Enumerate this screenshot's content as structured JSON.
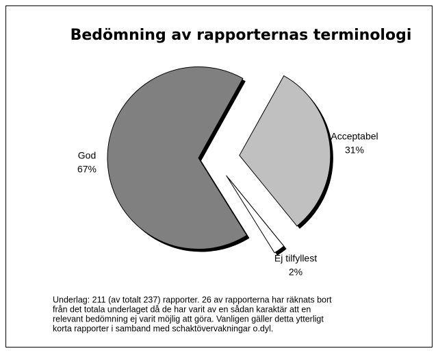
{
  "chart_data": {
    "type": "pie",
    "title": "Bedömning av rapporternas terminologi",
    "categories": [
      "God",
      "Acceptabel",
      "Ej tilfyllest"
    ],
    "values": [
      67,
      31,
      2
    ],
    "value_labels": [
      "67%",
      "31%",
      "2%"
    ],
    "colors": [
      "#808080",
      "#c0c0c0",
      "#ffffff"
    ],
    "note": [
      "Underlag: 211 (av totalt 237) rapporter. 26 av rapporterna har räknats bort",
      "från det totala underlaget då de har varit av en sådan karaktär att en",
      "relevant bedömning ej varit möjlig att göra. Vanligen gäller detta ytterligt",
      "korta rapporter i samband med schaktövervakningar o.dyl."
    ]
  }
}
